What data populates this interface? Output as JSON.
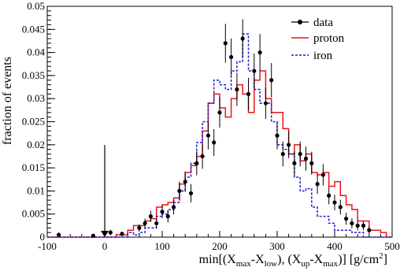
{
  "chart_data": {
    "type": "histogram",
    "xlabel_parts": [
      "min[(X",
      "max",
      "-X",
      "low",
      "), (X",
      "up",
      "-X",
      "max",
      ")] [g/cm",
      "2",
      "]"
    ],
    "ylabel": "fraction of events",
    "xlim": [
      -100,
      500
    ],
    "ylim": [
      0,
      0.05
    ],
    "x_ticks": [
      "-100",
      "0",
      "100",
      "200",
      "300",
      "400",
      "500"
    ],
    "y_ticks": [
      "0",
      "0.005",
      "0.01",
      "0.015",
      "0.02",
      "0.025",
      "0.03",
      "0.035",
      "0.04",
      "0.045",
      "0.05"
    ],
    "bin_width": 10,
    "legend": [
      "data",
      "proton",
      "iron"
    ],
    "legend_position": "top-right",
    "arrow_x": 0,
    "colors": {
      "data": "#000000",
      "proton": "#e8141b",
      "iron": "#1c1cd6",
      "arrow": "#000000"
    },
    "series": [
      {
        "name": "data",
        "style": "points_with_errors",
        "x": [
          -80,
          -20,
          10,
          30,
          60,
          70,
          80,
          90,
          100,
          110,
          120,
          130,
          140,
          150,
          160,
          170,
          180,
          190,
          200,
          210,
          220,
          230,
          240,
          250,
          260,
          270,
          280,
          290,
          300,
          310,
          320,
          330,
          340,
          350,
          360,
          370,
          380,
          390,
          400,
          410,
          420,
          430,
          440,
          450,
          460
        ],
        "y": [
          0.0005,
          0.0003,
          0.001,
          0.0007,
          0.002,
          0.003,
          0.0045,
          0.003,
          0.0055,
          0.0045,
          0.0065,
          0.01,
          0.012,
          0.0095,
          0.016,
          0.0175,
          0.022,
          0.0205,
          0.027,
          0.042,
          0.039,
          0.032,
          0.043,
          0.031,
          0.036,
          0.04,
          0.029,
          0.034,
          0.022,
          0.018,
          0.02,
          0.016,
          0.018,
          0.017,
          0.016,
          0.0115,
          0.0135,
          0.009,
          0.0075,
          0.0065,
          0.004,
          0.003,
          0.0025,
          0.0025,
          0.0015
        ],
        "yerr": [
          0.0005,
          0.0003,
          0.0006,
          0.0005,
          0.0008,
          0.001,
          0.0012,
          0.001,
          0.0014,
          0.0013,
          0.0016,
          0.002,
          0.0022,
          0.002,
          0.0026,
          0.0027,
          0.003,
          0.0029,
          0.0033,
          0.0042,
          0.004,
          0.0036,
          0.0042,
          0.0035,
          0.0038,
          0.004,
          0.0034,
          0.0037,
          0.003,
          0.0027,
          0.0029,
          0.0026,
          0.0027,
          0.0026,
          0.0025,
          0.0021,
          0.0023,
          0.0019,
          0.0017,
          0.0016,
          0.0013,
          0.0011,
          0.001,
          0.001,
          0.0008
        ]
      },
      {
        "name": "proton",
        "style": "step",
        "edges_start": -100,
        "values": [
          0,
          0,
          0,
          0,
          0,
          0,
          0,
          0,
          0,
          0,
          0,
          0,
          0.0005,
          0.0005,
          0.0015,
          0.0025,
          0.0025,
          0.0035,
          0.004,
          0.0065,
          0.007,
          0.0075,
          0.0085,
          0.0115,
          0.014,
          0.0155,
          0.0175,
          0.023,
          0.029,
          0.031,
          0.028,
          0.026,
          0.03,
          0.033,
          0.031,
          0.027,
          0.034,
          0.036,
          0.03,
          0.027,
          0.027,
          0.0235,
          0.018,
          0.02,
          0.0165,
          0.018,
          0.014,
          0.0135,
          0.014,
          0.011,
          0.012,
          0.009,
          0.007,
          0.006,
          0.0035,
          0.0035,
          0.0015,
          0.0015,
          0.001,
          0
        ]
      },
      {
        "name": "iron",
        "style": "step_dashed",
        "edges_start": -100,
        "values": [
          0,
          0,
          0,
          0,
          0,
          0,
          0,
          0,
          0,
          0,
          0,
          0,
          0,
          0,
          0.001,
          0.0005,
          0.001,
          0.002,
          0.002,
          0.0045,
          0.005,
          0.006,
          0.0075,
          0.01,
          0.013,
          0.016,
          0.0205,
          0.025,
          0.029,
          0.034,
          0.033,
          0.032,
          0.036,
          0.038,
          0.044,
          0.036,
          0.032,
          0.029,
          0.029,
          0.025,
          0.02,
          0.019,
          0.018,
          0.013,
          0.01,
          0.0105,
          0.0065,
          0.0045,
          0.0045,
          0.003,
          0.0015,
          0.0015,
          0.0015,
          0.001,
          0.001,
          0,
          0,
          0,
          0,
          0
        ]
      }
    ]
  }
}
